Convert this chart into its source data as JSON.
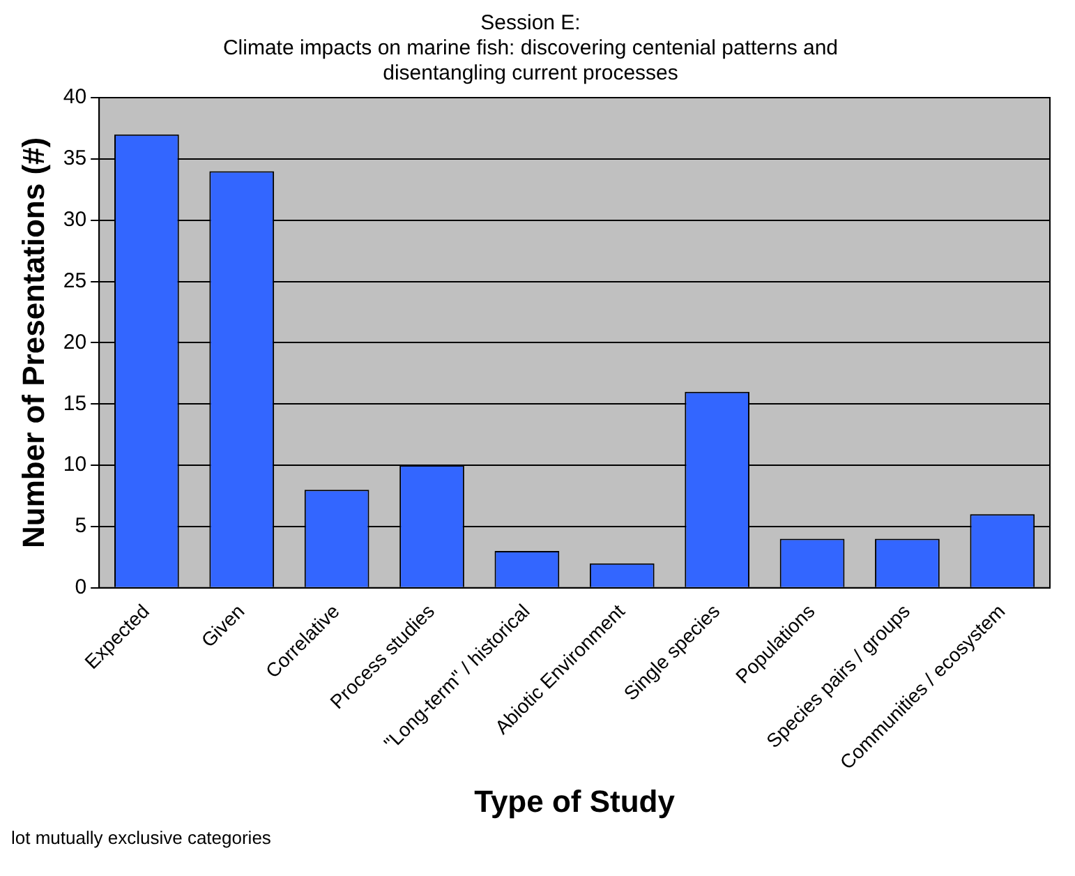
{
  "chart_data": {
    "type": "bar",
    "title": "Session E:\nClimate impacts on marine fish: discovering centenial patterns and\ndisentangling current processes",
    "xlabel": "Type of Study",
    "ylabel": "Number of Presentations (#)",
    "categories": [
      "Expected",
      "Given",
      "Correlative",
      "Process studies",
      "\"Long-term\" / historical",
      "Abiotic Environment",
      "Single species",
      "Populations",
      "Species pairs / groups",
      "Communities / ecosystem"
    ],
    "values": [
      37,
      34,
      8,
      10,
      3,
      2,
      16,
      4,
      4,
      6
    ],
    "color": "#3366ff",
    "ylim": [
      0,
      40
    ],
    "yticks": [
      0,
      5,
      10,
      15,
      20,
      25,
      30,
      35,
      40
    ],
    "grid": "y",
    "legend": false,
    "annotations": [
      "lot mutually exclusive categories"
    ]
  }
}
